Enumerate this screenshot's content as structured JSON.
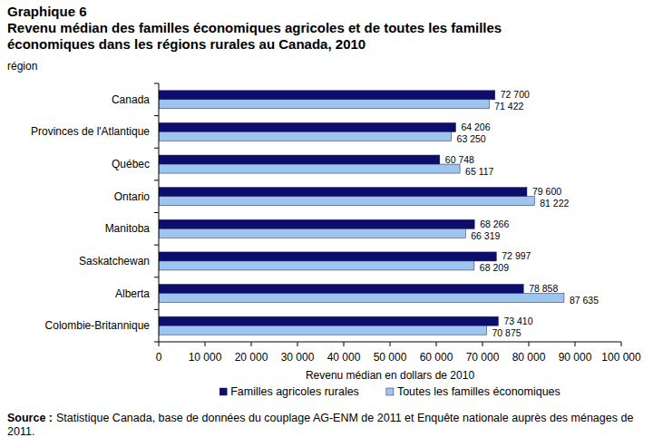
{
  "chart_data": {
    "type": "bar",
    "orientation": "horizontal",
    "figure_label": "Graphique 6",
    "title": "Revenu médian des familles économiques agricoles et de toutes les familles économiques dans les régions rurales au Canada, 2010",
    "ylabel": "région",
    "xlabel": "Revenu médian en dollars de 2010",
    "note_label": "Source :",
    "note": "Statistique Canada, base de données du couplage AG-ENM de 2011 et Enquête nationale auprès des ménages de 2011.",
    "categories": [
      "Canada",
      "Provinces de l'Atlantique",
      "Québec",
      "Ontario",
      "Manitoba",
      "Saskatchewan",
      "Alberta",
      "Colombie-Britannique"
    ],
    "series": [
      {
        "name": "Familles agricoles rurales",
        "color": "#0d0d6b",
        "values": [
          72700,
          64206,
          60748,
          79600,
          68266,
          72997,
          78858,
          73410
        ],
        "value_labels": [
          "72 700",
          "64 206",
          "60 748",
          "79 600",
          "68 266",
          "72 997",
          "78 858",
          "73 410"
        ]
      },
      {
        "name": "Toutes les familles économiques",
        "color": "#9ec5ee",
        "values": [
          71422,
          63250,
          65117,
          81222,
          66319,
          68209,
          87635,
          70875
        ],
        "value_labels": [
          "71 422",
          "63 250",
          "65 117",
          "81 222",
          "66 319",
          "68 209",
          "87 635",
          "70 875"
        ]
      }
    ],
    "xlim": [
      0,
      100000
    ],
    "xticks": [
      0,
      {
        "value": 10000,
        "label": "10 000"
      },
      {
        "value": 20000,
        "label": "20 000"
      },
      {
        "value": 30000,
        "label": "30 000"
      },
      {
        "value": 40000,
        "label": "40 000"
      },
      {
        "value": 50000,
        "label": "50 000"
      },
      {
        "value": 60000,
        "label": "60 000"
      },
      {
        "value": 70000,
        "label": "70 000"
      },
      {
        "value": 80000,
        "label": "80 000"
      },
      {
        "value": 90000,
        "label": "90 000"
      },
      {
        "value": 100000,
        "label": "100 000"
      }
    ],
    "grid": false,
    "legend": "bottom",
    "data_labels": true
  }
}
